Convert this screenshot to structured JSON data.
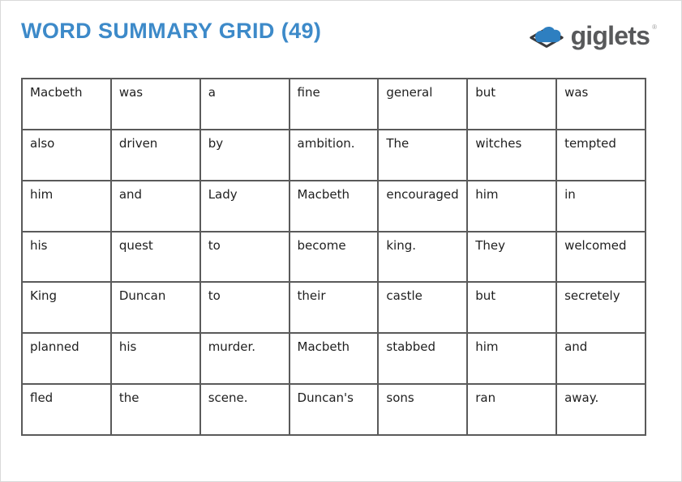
{
  "header": {
    "title": "WORD SUMMARY GRID (49)"
  },
  "logo": {
    "name": "giglets",
    "trademark": "®"
  },
  "colors": {
    "title_blue": "#3d8ac9",
    "logo_text_gray": "#58595b",
    "logo_cloud_blue": "#2e7fc0",
    "logo_book_dark": "#3a3a3c",
    "grid_border": "#5a5a5a",
    "cell_text": "#1f1f1f"
  },
  "grid": {
    "columns": 7,
    "rows": [
      [
        "Macbeth",
        "was",
        "a",
        "fine",
        "general",
        "but",
        "was"
      ],
      [
        "also",
        "driven",
        "by",
        "ambition.",
        "The",
        "witches",
        "tempted"
      ],
      [
        "him",
        "and",
        "Lady",
        "Macbeth",
        "encouraged",
        "him",
        "in"
      ],
      [
        "his",
        "quest",
        "to",
        "become",
        "king.",
        "They",
        "welcomed"
      ],
      [
        "King",
        "Duncan",
        "to",
        "their",
        "castle",
        "but",
        "secretely"
      ],
      [
        "planned",
        "his",
        "murder.",
        "Macbeth",
        "stabbed",
        "him",
        "and"
      ],
      [
        "fled",
        "the",
        "scene.",
        "Duncan's",
        "sons",
        "ran",
        "away."
      ]
    ]
  }
}
